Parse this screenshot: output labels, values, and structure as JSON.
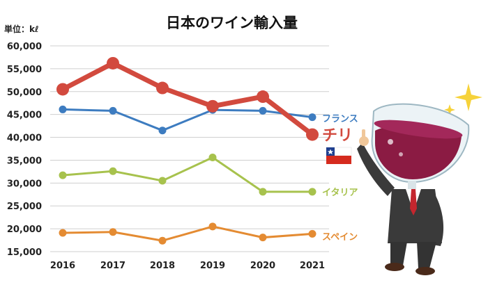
{
  "chart_data": {
    "type": "line",
    "title": "日本のワイン輸入量",
    "unit_label": "単位：kℓ",
    "categories": [
      "2016",
      "2017",
      "2018",
      "2019",
      "2020",
      "2021"
    ],
    "ylim": [
      15000,
      60000
    ],
    "y_ticks": [
      "15,000",
      "20,000",
      "25,000",
      "30,000",
      "35,000",
      "40,000",
      "45,000",
      "50,000",
      "55,000",
      "60,000"
    ],
    "grid": true,
    "series": [
      {
        "name": "フランス",
        "color": "#3d7cc0",
        "values": [
          46100,
          45800,
          41500,
          46000,
          45800,
          44400
        ]
      },
      {
        "name": "チリ",
        "color": "#d24a3e",
        "values": [
          50500,
          56200,
          50800,
          46800,
          48900,
          40600
        ]
      },
      {
        "name": "イタリア",
        "color": "#a7c24d",
        "values": [
          31700,
          32600,
          30500,
          35600,
          28100,
          28100
        ]
      },
      {
        "name": "スペイン",
        "color": "#e48b32",
        "values": [
          19100,
          19300,
          17400,
          20500,
          18100,
          18900
        ]
      }
    ]
  },
  "decor": {
    "flag": "chile-flag-icon",
    "mascot": "wine-glass-head-mascot-icon",
    "sparkle": "sparkle-icon"
  }
}
